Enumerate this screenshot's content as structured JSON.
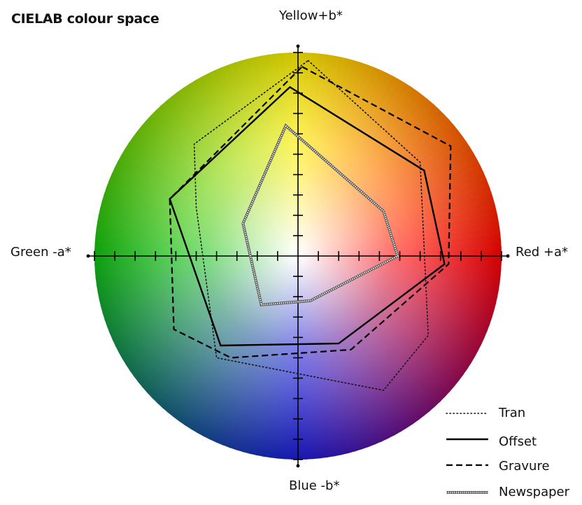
{
  "title": "CIELAB colour space",
  "axes": {
    "top": "Yellow+b*",
    "bottom": "Blue -b*",
    "left": "Green -a*",
    "right": "Red +a*"
  },
  "colors": {
    "yellow": "#ffee00",
    "red": "#ff0000",
    "blue": "#1a1ad6",
    "green": "#10c010"
  },
  "chart_data": {
    "type": "radar-polygon",
    "title": "CIELAB colour space",
    "xlabel_positive": "Red +a*",
    "xlabel_negative": "Green -a*",
    "ylabel_positive": "Yellow+b*",
    "ylabel_negative": "Blue -b*",
    "xlim": [
      -10,
      10
    ],
    "ylim": [
      -10,
      10
    ],
    "tick_step": 1,
    "legend_position": "bottom-right",
    "series": [
      {
        "name": "Tran",
        "style": "dotted",
        "points": [
          [
            0.5,
            9.6
          ],
          [
            6.0,
            4.6
          ],
          [
            6.4,
            -3.9
          ],
          [
            4.2,
            -6.6
          ],
          [
            -4.0,
            -5.0
          ],
          [
            -5.0,
            2.4
          ],
          [
            -5.1,
            5.5
          ]
        ]
      },
      {
        "name": "Offset",
        "style": "solid",
        "points": [
          [
            -0.4,
            8.3
          ],
          [
            6.2,
            4.2
          ],
          [
            7.2,
            -0.4
          ],
          [
            2.0,
            -4.3
          ],
          [
            -3.8,
            -4.4
          ],
          [
            -6.3,
            2.8
          ]
        ]
      },
      {
        "name": "Gravure",
        "style": "dashed",
        "points": [
          [
            0.2,
            9.3
          ],
          [
            7.5,
            5.4
          ],
          [
            7.4,
            -0.4
          ],
          [
            2.6,
            -4.6
          ],
          [
            -3.3,
            -5.0
          ],
          [
            -6.1,
            -3.6
          ],
          [
            -6.3,
            2.8
          ]
        ]
      },
      {
        "name": "Newspaper",
        "style": "hatched",
        "points": [
          [
            -0.6,
            6.4
          ],
          [
            4.2,
            2.2
          ],
          [
            4.9,
            0.0
          ],
          [
            0.6,
            -2.2
          ],
          [
            -1.8,
            -2.4
          ],
          [
            -2.7,
            1.6
          ]
        ]
      }
    ]
  }
}
